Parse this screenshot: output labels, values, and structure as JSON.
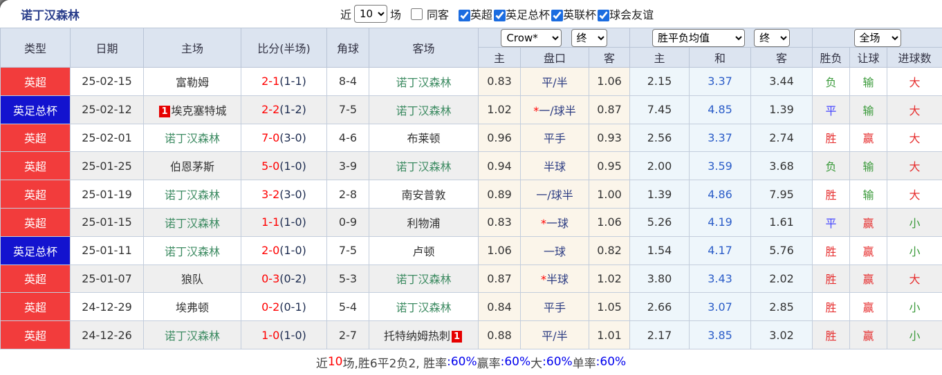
{
  "title": "诺丁汉森林",
  "filter_bar": {
    "recent_label": "近",
    "count_value": "10",
    "unit_label": "场",
    "same_away": {
      "label": "同客",
      "checked": false
    },
    "leagues": [
      {
        "label": "英超",
        "checked": true
      },
      {
        "label": "英足总杯",
        "checked": true
      },
      {
        "label": "英联杯",
        "checked": true
      },
      {
        "label": "球会友谊",
        "checked": true
      }
    ]
  },
  "header": {
    "left_columns": [
      "类型",
      "日期",
      "主场",
      "比分(半场)",
      "角球",
      "客场"
    ],
    "odds_group": {
      "bookmaker": "Crow*",
      "time": "终"
    },
    "avg_group": {
      "metric": "胜平负均值",
      "time": "终"
    },
    "result_group": {
      "scope": "全场"
    },
    "sub_columns": [
      "主",
      "盘口",
      "客",
      "主",
      "和",
      "客",
      "胜负",
      "让球",
      "进球数"
    ]
  },
  "rows": [
    {
      "league": "英超",
      "league_color": "red",
      "date": "25-02-15",
      "home": {
        "name": "富勒姆",
        "forest": false
      },
      "score": {
        "ft": "2-1",
        "ht": "(1-1)"
      },
      "corners": "8-4",
      "away": {
        "name": "诺丁汉森林",
        "forest": true
      },
      "odds": {
        "home": "0.83",
        "star": false,
        "handicap": "平/半",
        "away": "1.06"
      },
      "avg": {
        "home": "2.15",
        "draw": "3.37",
        "away": "3.44"
      },
      "results": {
        "outcome": "负",
        "handicap": "输",
        "goals": "大"
      }
    },
    {
      "league": "英足总杯",
      "league_color": "blue",
      "date": "25-02-12",
      "home": {
        "name": "埃克塞特城",
        "forest": false,
        "red_card": "1",
        "badge_pos": "before"
      },
      "score": {
        "ft": "2-2",
        "ht": "(1-2)"
      },
      "corners": "7-5",
      "away": {
        "name": "诺丁汉森林",
        "forest": true
      },
      "odds": {
        "home": "1.02",
        "star": true,
        "handicap": "一/球半",
        "away": "0.87"
      },
      "avg": {
        "home": "7.45",
        "draw": "4.85",
        "away": "1.39"
      },
      "results": {
        "outcome": "平",
        "handicap": "输",
        "goals": "大"
      }
    },
    {
      "league": "英超",
      "league_color": "red",
      "date": "25-02-01",
      "home": {
        "name": "诺丁汉森林",
        "forest": true
      },
      "score": {
        "ft": "7-0",
        "ht": "(3-0)"
      },
      "corners": "4-6",
      "away": {
        "name": "布莱顿",
        "forest": false
      },
      "odds": {
        "home": "0.96",
        "star": false,
        "handicap": "平手",
        "away": "0.93"
      },
      "avg": {
        "home": "2.56",
        "draw": "3.37",
        "away": "2.74"
      },
      "results": {
        "outcome": "胜",
        "handicap": "赢",
        "goals": "大"
      }
    },
    {
      "league": "英超",
      "league_color": "red",
      "date": "25-01-25",
      "home": {
        "name": "伯恩茅斯",
        "forest": false
      },
      "score": {
        "ft": "5-0",
        "ht": "(1-0)"
      },
      "corners": "3-9",
      "away": {
        "name": "诺丁汉森林",
        "forest": true
      },
      "odds": {
        "home": "0.94",
        "star": false,
        "handicap": "半球",
        "away": "0.95"
      },
      "avg": {
        "home": "2.00",
        "draw": "3.59",
        "away": "3.68"
      },
      "results": {
        "outcome": "负",
        "handicap": "输",
        "goals": "大"
      }
    },
    {
      "league": "英超",
      "league_color": "red",
      "date": "25-01-19",
      "home": {
        "name": "诺丁汉森林",
        "forest": true
      },
      "score": {
        "ft": "3-2",
        "ht": "(3-0)"
      },
      "corners": "2-8",
      "away": {
        "name": "南安普敦",
        "forest": false
      },
      "odds": {
        "home": "0.89",
        "star": false,
        "handicap": "一/球半",
        "away": "1.00"
      },
      "avg": {
        "home": "1.39",
        "draw": "4.86",
        "away": "7.95"
      },
      "results": {
        "outcome": "胜",
        "handicap": "输",
        "goals": "大"
      }
    },
    {
      "league": "英超",
      "league_color": "red",
      "date": "25-01-15",
      "home": {
        "name": "诺丁汉森林",
        "forest": true
      },
      "score": {
        "ft": "1-1",
        "ht": "(1-0)"
      },
      "corners": "0-9",
      "away": {
        "name": "利物浦",
        "forest": false
      },
      "odds": {
        "home": "0.83",
        "star": true,
        "handicap": "一球",
        "away": "1.06"
      },
      "avg": {
        "home": "5.26",
        "draw": "4.19",
        "away": "1.61"
      },
      "results": {
        "outcome": "平",
        "handicap": "赢",
        "goals": "小"
      }
    },
    {
      "league": "英足总杯",
      "league_color": "blue",
      "date": "25-01-11",
      "home": {
        "name": "诺丁汉森林",
        "forest": true
      },
      "score": {
        "ft": "2-0",
        "ht": "(1-0)"
      },
      "corners": "7-5",
      "away": {
        "name": "卢顿",
        "forest": false
      },
      "odds": {
        "home": "1.06",
        "star": false,
        "handicap": "一球",
        "away": "0.82"
      },
      "avg": {
        "home": "1.54",
        "draw": "4.17",
        "away": "5.76"
      },
      "results": {
        "outcome": "胜",
        "handicap": "赢",
        "goals": "小"
      }
    },
    {
      "league": "英超",
      "league_color": "red",
      "date": "25-01-07",
      "home": {
        "name": "狼队",
        "forest": false
      },
      "score": {
        "ft": "0-3",
        "ht": "(0-2)"
      },
      "corners": "5-3",
      "away": {
        "name": "诺丁汉森林",
        "forest": true
      },
      "odds": {
        "home": "0.87",
        "star": true,
        "handicap": "半球",
        "away": "1.02"
      },
      "avg": {
        "home": "3.80",
        "draw": "3.43",
        "away": "2.02"
      },
      "results": {
        "outcome": "胜",
        "handicap": "赢",
        "goals": "大"
      }
    },
    {
      "league": "英超",
      "league_color": "red",
      "date": "24-12-29",
      "home": {
        "name": "埃弗顿",
        "forest": false
      },
      "score": {
        "ft": "0-2",
        "ht": "(0-1)"
      },
      "corners": "5-4",
      "away": {
        "name": "诺丁汉森林",
        "forest": true
      },
      "odds": {
        "home": "0.84",
        "star": false,
        "handicap": "平手",
        "away": "1.05"
      },
      "avg": {
        "home": "2.66",
        "draw": "3.07",
        "away": "2.85"
      },
      "results": {
        "outcome": "胜",
        "handicap": "赢",
        "goals": "小"
      }
    },
    {
      "league": "英超",
      "league_color": "red",
      "date": "24-12-26",
      "home": {
        "name": "诺丁汉森林",
        "forest": true
      },
      "score": {
        "ft": "1-0",
        "ht": "(1-0)"
      },
      "corners": "2-7",
      "away": {
        "name": "托特纳姆热刺",
        "forest": false,
        "red_card": "1",
        "badge_pos": "after"
      },
      "odds": {
        "home": "0.88",
        "star": false,
        "handicap": "平/半",
        "away": "1.01"
      },
      "avg": {
        "home": "2.17",
        "draw": "3.85",
        "away": "3.02"
      },
      "results": {
        "outcome": "胜",
        "handicap": "赢",
        "goals": "小"
      }
    }
  ],
  "footer_segments": [
    {
      "text": "近",
      "style": "plain"
    },
    {
      "text": "10",
      "style": "red"
    },
    {
      "text": "场,胜6平2负2, 胜率",
      "style": "plain"
    },
    {
      "text": ":60%",
      "style": "blue"
    },
    {
      "text": " 赢率",
      "style": "plain"
    },
    {
      "text": ":60%",
      "style": "blue"
    },
    {
      "text": " 大",
      "style": "plain"
    },
    {
      "text": ":60%",
      "style": "blue"
    },
    {
      "text": " 单率",
      "style": "plain"
    },
    {
      "text": ":60%",
      "style": "blue"
    }
  ],
  "colors": {
    "title_blue": "#2b3f8c",
    "league_epl_red": "#f23c3c",
    "league_facup_blue": "#1313cf",
    "score_red": "#ff0000",
    "forest_green": "#3d8b62",
    "handicap_navy": "#2c3c82",
    "avg_draw_blue": "#2a5cc8",
    "win_red": "#e62e2e",
    "lose_green": "#3a9a3a",
    "draw_blue": "#4444ff",
    "footer_pct_blue": "#0000ee",
    "header_bg": "#dce4f0",
    "odds_bg": "#fbf5ea",
    "avg_bg": "#eef6fb",
    "alt_row_bg": "#efefef"
  }
}
